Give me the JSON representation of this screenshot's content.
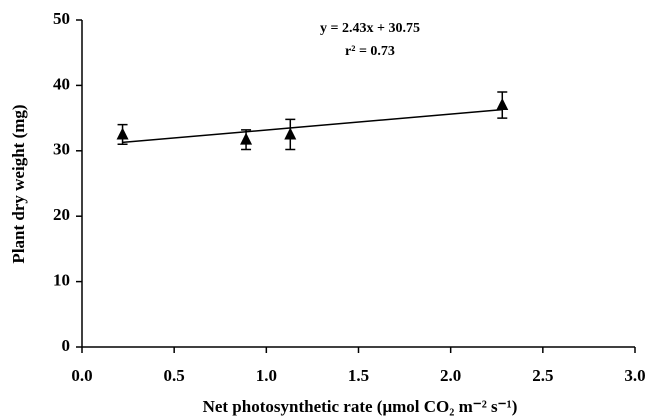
{
  "chart_data": {
    "type": "scatter",
    "xlabel": "Net photosynthetic rate (μmol CO₂ m⁻² s⁻¹)",
    "ylabel": "Plant dry weight (mg)",
    "annotations": [
      "y = 2.43x + 30.75",
      "r² = 0.73"
    ],
    "x": [
      0.22,
      0.89,
      1.13,
      2.28
    ],
    "values": [
      32.5,
      31.7,
      32.5,
      37.0
    ],
    "errors": [
      1.5,
      1.5,
      2.3,
      2.0
    ],
    "color": "#000000",
    "fit": {
      "slope": 2.43,
      "intercept": 30.75
    },
    "xlim": [
      0,
      3
    ],
    "ylim": [
      0,
      50
    ],
    "xticks": [
      {
        "value": 0,
        "label": "0.0"
      },
      0.5,
      {
        "value": 1,
        "label": "1.0"
      },
      1.5,
      {
        "value": 2,
        "label": "2.0"
      },
      2.5,
      {
        "value": 3,
        "label": "3.0"
      }
    ],
    "yticks": [
      0,
      10,
      20,
      30,
      40,
      50
    ],
    "grid": false
  }
}
